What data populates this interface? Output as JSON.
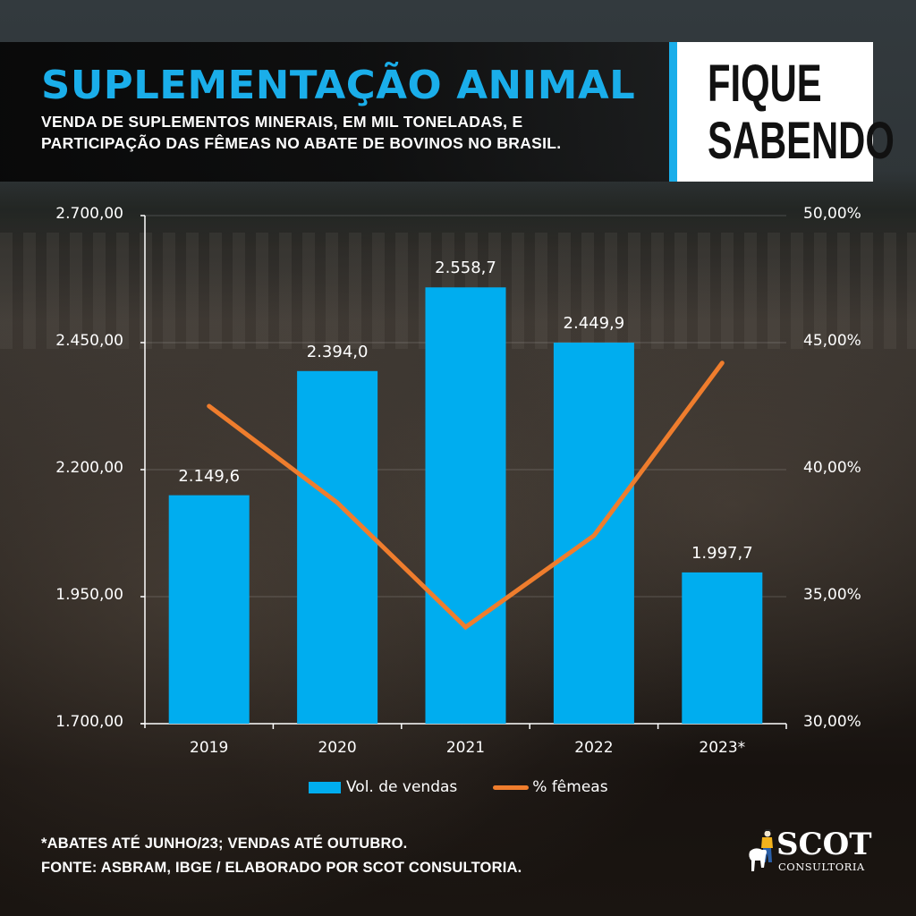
{
  "header": {
    "title": "SUPLEMENTAÇÃO ANIMAL",
    "subtitle_line1": "VENDA DE SUPLEMENTOS MINERAIS, EM MIL TONELADAS, E",
    "subtitle_line2": "PARTICIPAÇÃO DAS FÊMEAS NO ABATE DE BOVINOS NO BRASIL.",
    "badge_line1": "FIQUE",
    "badge_line2": "SABENDO"
  },
  "colors": {
    "accent_blue": "#00adef",
    "line_orange": "#ef7d2d",
    "title_blue": "#1aaeea",
    "text": "#ffffff"
  },
  "chart_data": {
    "type": "bar+line",
    "title": "SUPLEMENTAÇÃO ANIMAL",
    "subtitle": "VENDA DE SUPLEMENTOS MINERAIS, EM MIL TONELADAS, E PARTICIPAÇÃO DAS FÊMEAS NO ABATE DE BOVINOS NO BRASIL.",
    "categories": [
      "2019",
      "2020",
      "2021",
      "2022",
      "2023*"
    ],
    "series": [
      {
        "name": "Vol. de vendas",
        "type": "bar",
        "axis": "left",
        "values": [
          2149.6,
          2394.0,
          2558.7,
          2449.9,
          1997.7
        ],
        "labels": [
          "2.149,6",
          "2.394,0",
          "2.558,7",
          "2.449,9",
          "1.997,7"
        ]
      },
      {
        "name": "% fêmeas",
        "type": "line",
        "axis": "right",
        "values": [
          42.5,
          38.7,
          33.8,
          37.4,
          44.2
        ]
      }
    ],
    "y_left": {
      "range": [
        1700,
        2700
      ],
      "ticks": [
        1700,
        1950,
        2200,
        2450,
        2700
      ],
      "tick_labels": [
        "1.700,00",
        "1.950,00",
        "2.200,00",
        "2.450,00",
        "2.700,00"
      ]
    },
    "y_right": {
      "range": [
        30,
        50
      ],
      "ticks": [
        30,
        35,
        40,
        45,
        50
      ],
      "tick_labels": [
        "30,00%",
        "35,00%",
        "40,00%",
        "45,00%",
        "50,00%"
      ]
    },
    "xlabel": "",
    "ylabel": "",
    "grid": true,
    "legend_position": "bottom"
  },
  "legend": {
    "bar_label": "Vol. de vendas",
    "line_label": "% fêmeas"
  },
  "footer": {
    "note": "*ABATES ATÉ JUNHO/23; VENDAS ATÉ OUTUBRO.",
    "source": "FONTE: ASBRAM, IBGE / ELABORADO POR SCOT CONSULTORIA.",
    "logo_name": "SCOT",
    "logo_sub": "CONSULTORIA"
  }
}
